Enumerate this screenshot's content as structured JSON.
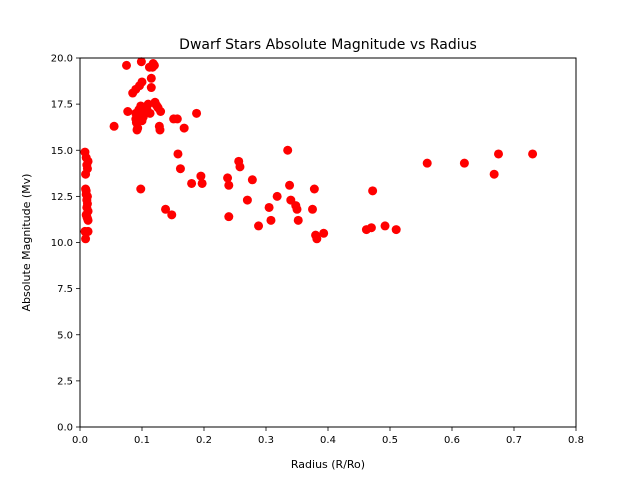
{
  "chart_data": {
    "type": "scatter",
    "title": "Dwarf Stars Absolute Magnitude vs Radius",
    "xlabel": "Radius (R/Ro)",
    "ylabel": "Absolute Magnitude (Mv)",
    "xlim": [
      0.0,
      0.8
    ],
    "ylim": [
      0.0,
      20.0
    ],
    "xticks": [
      "0.0",
      "0.1",
      "0.2",
      "0.3",
      "0.4",
      "0.5",
      "0.6",
      "0.7",
      "0.8"
    ],
    "yticks": [
      "0.0",
      "2.5",
      "5.0",
      "7.5",
      "10.0",
      "12.5",
      "15.0",
      "17.5",
      "20.0"
    ],
    "grid": false,
    "marker_color": "#ff0000",
    "series": [
      {
        "points": [
          [
            0.008,
            14.9
          ],
          [
            0.009,
            13.7
          ],
          [
            0.01,
            14.6
          ],
          [
            0.011,
            14.2
          ],
          [
            0.012,
            14.0
          ],
          [
            0.013,
            14.4
          ],
          [
            0.009,
            12.9
          ],
          [
            0.01,
            12.8
          ],
          [
            0.011,
            12.3
          ],
          [
            0.012,
            12.1
          ],
          [
            0.013,
            11.7
          ],
          [
            0.011,
            11.9
          ],
          [
            0.01,
            11.5
          ],
          [
            0.012,
            11.3
          ],
          [
            0.013,
            11.2
          ],
          [
            0.011,
            11.4
          ],
          [
            0.008,
            10.6
          ],
          [
            0.013,
            10.6
          ],
          [
            0.009,
            10.2
          ],
          [
            0.012,
            12.5
          ],
          [
            0.01,
            12.6
          ],
          [
            0.055,
            16.3
          ],
          [
            0.075,
            19.6
          ],
          [
            0.077,
            17.1
          ],
          [
            0.085,
            18.1
          ],
          [
            0.09,
            18.3
          ],
          [
            0.09,
            17.0
          ],
          [
            0.09,
            16.7
          ],
          [
            0.091,
            16.5
          ],
          [
            0.092,
            16.1
          ],
          [
            0.093,
            16.2
          ],
          [
            0.095,
            17.2
          ],
          [
            0.096,
            18.5
          ],
          [
            0.098,
            17.4
          ],
          [
            0.098,
            16.9
          ],
          [
            0.099,
            19.8
          ],
          [
            0.1,
            18.7
          ],
          [
            0.1,
            16.6
          ],
          [
            0.102,
            16.8
          ],
          [
            0.104,
            17.1
          ],
          [
            0.106,
            17.3
          ],
          [
            0.108,
            17.2
          ],
          [
            0.11,
            17.5
          ],
          [
            0.112,
            19.5
          ],
          [
            0.113,
            17.0
          ],
          [
            0.115,
            18.9
          ],
          [
            0.115,
            18.4
          ],
          [
            0.117,
            19.5
          ],
          [
            0.118,
            19.7
          ],
          [
            0.12,
            19.6
          ],
          [
            0.121,
            17.6
          ],
          [
            0.122,
            17.5
          ],
          [
            0.124,
            17.4
          ],
          [
            0.126,
            17.3
          ],
          [
            0.128,
            16.3
          ],
          [
            0.129,
            16.1
          ],
          [
            0.13,
            17.1
          ],
          [
            0.098,
            12.9
          ],
          [
            0.138,
            11.8
          ],
          [
            0.148,
            11.5
          ],
          [
            0.151,
            16.7
          ],
          [
            0.157,
            16.7
          ],
          [
            0.158,
            14.8
          ],
          [
            0.162,
            14.0
          ],
          [
            0.168,
            16.2
          ],
          [
            0.18,
            13.2
          ],
          [
            0.188,
            17.0
          ],
          [
            0.195,
            13.6
          ],
          [
            0.197,
            13.2
          ],
          [
            0.238,
            13.5
          ],
          [
            0.24,
            13.1
          ],
          [
            0.24,
            11.4
          ],
          [
            0.256,
            14.4
          ],
          [
            0.258,
            14.1
          ],
          [
            0.27,
            12.3
          ],
          [
            0.278,
            13.4
          ],
          [
            0.288,
            10.9
          ],
          [
            0.305,
            11.9
          ],
          [
            0.308,
            11.2
          ],
          [
            0.318,
            12.5
          ],
          [
            0.335,
            15.0
          ],
          [
            0.338,
            13.1
          ],
          [
            0.34,
            12.3
          ],
          [
            0.348,
            12.0
          ],
          [
            0.35,
            11.8
          ],
          [
            0.352,
            11.2
          ],
          [
            0.375,
            11.8
          ],
          [
            0.378,
            12.9
          ],
          [
            0.38,
            10.4
          ],
          [
            0.382,
            10.2
          ],
          [
            0.393,
            10.5
          ],
          [
            0.462,
            10.7
          ],
          [
            0.47,
            10.8
          ],
          [
            0.472,
            12.8
          ],
          [
            0.492,
            10.9
          ],
          [
            0.51,
            10.7
          ],
          [
            0.56,
            14.3
          ],
          [
            0.62,
            14.3
          ],
          [
            0.668,
            13.7
          ],
          [
            0.675,
            14.8
          ],
          [
            0.73,
            14.8
          ]
        ]
      }
    ]
  }
}
